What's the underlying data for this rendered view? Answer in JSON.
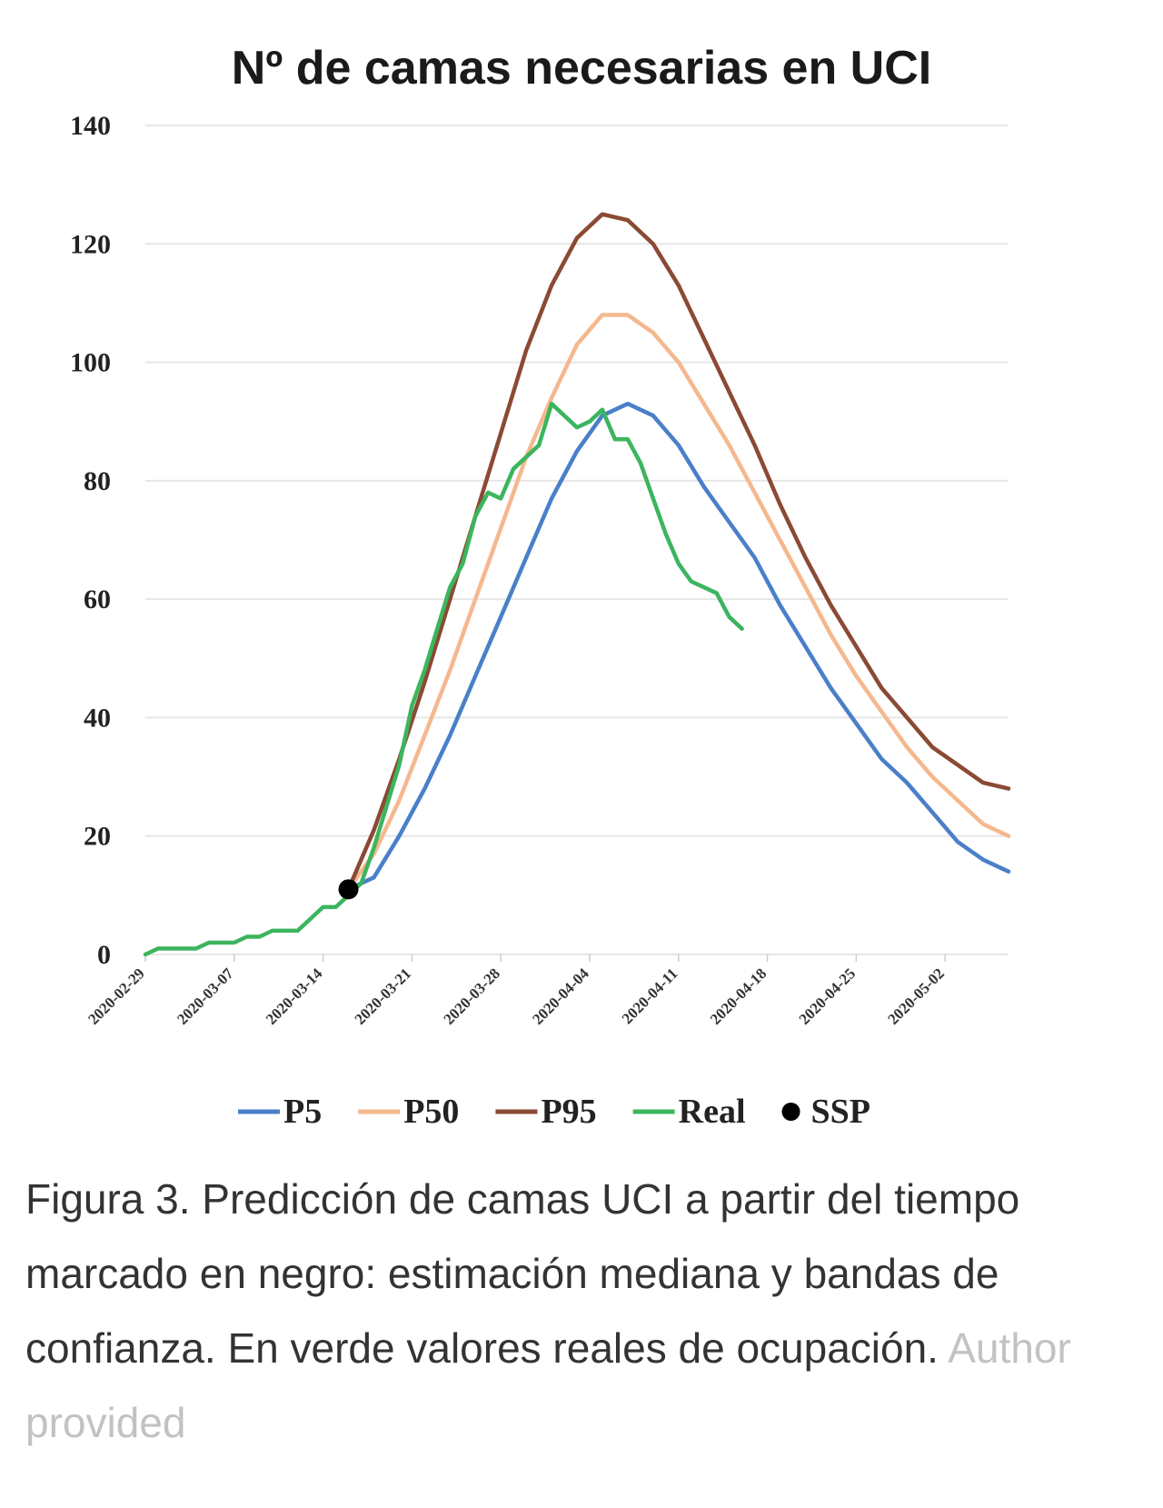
{
  "chart_data": {
    "type": "line",
    "title": "Nº de camas necesarias en UCI",
    "xlabel": "",
    "ylabel": "",
    "ylim": [
      0,
      140
    ],
    "yticks": [
      0,
      20,
      40,
      60,
      80,
      100,
      120,
      140
    ],
    "xlim": [
      "2020-02-29",
      "2020-05-07"
    ],
    "xticks": [
      "2020-02-29",
      "2020-03-07",
      "2020-03-14",
      "2020-03-21",
      "2020-03-28",
      "2020-04-04",
      "2020-04-11",
      "2020-04-18",
      "2020-04-25",
      "2020-05-02"
    ],
    "grid": true,
    "legend_position": "bottom",
    "series": [
      {
        "name": "P5",
        "color": "#4a7fc9",
        "points": [
          [
            "2020-03-16",
            11
          ],
          [
            "2020-03-18",
            13
          ],
          [
            "2020-03-20",
            20
          ],
          [
            "2020-03-22",
            28
          ],
          [
            "2020-03-24",
            37
          ],
          [
            "2020-03-26",
            47
          ],
          [
            "2020-03-28",
            57
          ],
          [
            "2020-03-30",
            67
          ],
          [
            "2020-04-01",
            77
          ],
          [
            "2020-04-03",
            85
          ],
          [
            "2020-04-05",
            91
          ],
          [
            "2020-04-07",
            93
          ],
          [
            "2020-04-09",
            91
          ],
          [
            "2020-04-11",
            86
          ],
          [
            "2020-04-13",
            79
          ],
          [
            "2020-04-15",
            73
          ],
          [
            "2020-04-17",
            67
          ],
          [
            "2020-04-19",
            59
          ],
          [
            "2020-04-21",
            52
          ],
          [
            "2020-04-23",
            45
          ],
          [
            "2020-04-25",
            39
          ],
          [
            "2020-04-27",
            33
          ],
          [
            "2020-04-29",
            29
          ],
          [
            "2020-05-01",
            24
          ],
          [
            "2020-05-03",
            19
          ],
          [
            "2020-05-05",
            16
          ],
          [
            "2020-05-07",
            14
          ]
        ]
      },
      {
        "name": "P50",
        "color": "#f5b88e",
        "points": [
          [
            "2020-03-16",
            11
          ],
          [
            "2020-03-18",
            17
          ],
          [
            "2020-03-20",
            26
          ],
          [
            "2020-03-22",
            37
          ],
          [
            "2020-03-24",
            48
          ],
          [
            "2020-03-26",
            60
          ],
          [
            "2020-03-28",
            72
          ],
          [
            "2020-03-30",
            84
          ],
          [
            "2020-04-01",
            94
          ],
          [
            "2020-04-03",
            103
          ],
          [
            "2020-04-05",
            108
          ],
          [
            "2020-04-07",
            108
          ],
          [
            "2020-04-09",
            105
          ],
          [
            "2020-04-11",
            100
          ],
          [
            "2020-04-13",
            93
          ],
          [
            "2020-04-15",
            86
          ],
          [
            "2020-04-17",
            78
          ],
          [
            "2020-04-19",
            70
          ],
          [
            "2020-04-21",
            62
          ],
          [
            "2020-04-23",
            54
          ],
          [
            "2020-04-25",
            47
          ],
          [
            "2020-04-27",
            41
          ],
          [
            "2020-04-29",
            35
          ],
          [
            "2020-05-01",
            30
          ],
          [
            "2020-05-03",
            26
          ],
          [
            "2020-05-05",
            22
          ],
          [
            "2020-05-07",
            20
          ]
        ]
      },
      {
        "name": "P95",
        "color": "#8a4a33",
        "points": [
          [
            "2020-03-16",
            11
          ],
          [
            "2020-03-18",
            21
          ],
          [
            "2020-03-20",
            33
          ],
          [
            "2020-03-22",
            46
          ],
          [
            "2020-03-24",
            60
          ],
          [
            "2020-03-26",
            74
          ],
          [
            "2020-03-28",
            88
          ],
          [
            "2020-03-30",
            102
          ],
          [
            "2020-04-01",
            113
          ],
          [
            "2020-04-03",
            121
          ],
          [
            "2020-04-05",
            125
          ],
          [
            "2020-04-07",
            124
          ],
          [
            "2020-04-09",
            120
          ],
          [
            "2020-04-11",
            113
          ],
          [
            "2020-04-13",
            104
          ],
          [
            "2020-04-15",
            95
          ],
          [
            "2020-04-17",
            86
          ],
          [
            "2020-04-19",
            76
          ],
          [
            "2020-04-21",
            67
          ],
          [
            "2020-04-23",
            59
          ],
          [
            "2020-04-25",
            52
          ],
          [
            "2020-04-27",
            45
          ],
          [
            "2020-04-29",
            40
          ],
          [
            "2020-05-01",
            35
          ],
          [
            "2020-05-03",
            32
          ],
          [
            "2020-05-05",
            29
          ],
          [
            "2020-05-07",
            28
          ]
        ]
      },
      {
        "name": "Real",
        "color": "#3cb55e",
        "points": [
          [
            "2020-02-29",
            0
          ],
          [
            "2020-03-01",
            1
          ],
          [
            "2020-03-02",
            1
          ],
          [
            "2020-03-03",
            1
          ],
          [
            "2020-03-04",
            1
          ],
          [
            "2020-03-05",
            2
          ],
          [
            "2020-03-06",
            2
          ],
          [
            "2020-03-07",
            2
          ],
          [
            "2020-03-08",
            3
          ],
          [
            "2020-03-09",
            3
          ],
          [
            "2020-03-10",
            4
          ],
          [
            "2020-03-11",
            4
          ],
          [
            "2020-03-12",
            4
          ],
          [
            "2020-03-13",
            6
          ],
          [
            "2020-03-14",
            8
          ],
          [
            "2020-03-15",
            8
          ],
          [
            "2020-03-16",
            10
          ],
          [
            "2020-03-17",
            12
          ],
          [
            "2020-03-18",
            18
          ],
          [
            "2020-03-19",
            25
          ],
          [
            "2020-03-20",
            32
          ],
          [
            "2020-03-21",
            42
          ],
          [
            "2020-03-22",
            48
          ],
          [
            "2020-03-23",
            55
          ],
          [
            "2020-03-24",
            62
          ],
          [
            "2020-03-25",
            66
          ],
          [
            "2020-03-26",
            74
          ],
          [
            "2020-03-27",
            78
          ],
          [
            "2020-03-28",
            77
          ],
          [
            "2020-03-29",
            82
          ],
          [
            "2020-03-30",
            84
          ],
          [
            "2020-03-31",
            86
          ],
          [
            "2020-04-01",
            93
          ],
          [
            "2020-04-02",
            91
          ],
          [
            "2020-04-03",
            89
          ],
          [
            "2020-04-04",
            90
          ],
          [
            "2020-04-05",
            92
          ],
          [
            "2020-04-06",
            87
          ],
          [
            "2020-04-07",
            87
          ],
          [
            "2020-04-08",
            83
          ],
          [
            "2020-04-09",
            77
          ],
          [
            "2020-04-10",
            71
          ],
          [
            "2020-04-11",
            66
          ],
          [
            "2020-04-12",
            63
          ],
          [
            "2020-04-13",
            62
          ],
          [
            "2020-04-14",
            61
          ],
          [
            "2020-04-15",
            57
          ],
          [
            "2020-04-16",
            55
          ]
        ]
      }
    ],
    "markers": [
      {
        "name": "SSP",
        "color": "#000000",
        "point": [
          "2020-03-16",
          11
        ]
      }
    ]
  },
  "caption": {
    "text": "Figura 3. Predicción de camas UCI a partir del tiempo marcado en negro: estimación mediana y bandas de confianza. En verde valores reales de ocupación.",
    "credit": "Author provided"
  }
}
